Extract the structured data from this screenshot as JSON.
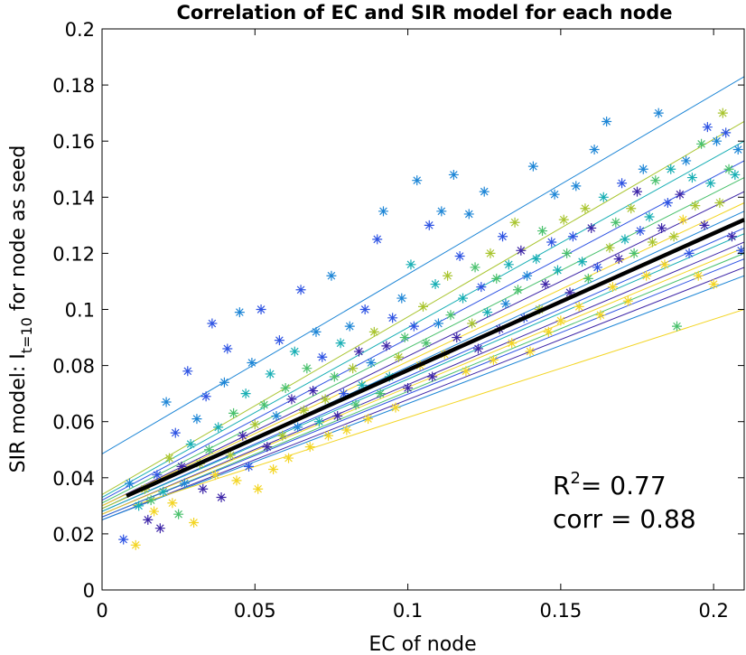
{
  "chart_data": {
    "type": "scatter",
    "title": "Correlation of EC and SIR model for each node",
    "xlabel": "EC of node",
    "ylabel_main": "SIR model: I",
    "ylabel_sub": "t=10",
    "ylabel_rest": " for node as seed",
    "xlim": [
      0,
      0.21
    ],
    "ylim": [
      0,
      0.2
    ],
    "xticks": [
      0,
      0.05,
      0.1,
      0.15,
      0.2
    ],
    "xtick_labels": [
      "0",
      "0.05",
      "0.1",
      "0.15",
      "0.2"
    ],
    "yticks": [
      0,
      0.02,
      0.04,
      0.06,
      0.08,
      0.1,
      0.12,
      0.14,
      0.16,
      0.18,
      0.2
    ],
    "ytick_labels": [
      "0",
      "0.02",
      "0.04",
      "0.06",
      "0.08",
      "0.1",
      "0.12",
      "0.14",
      "0.16",
      "0.18",
      "0.2"
    ],
    "marker": "asterisk",
    "colormap": [
      "#3e26a8",
      "#2f54e3",
      "#1e86d6",
      "#17aeb4",
      "#4ac16d",
      "#a9c530",
      "#f3d524",
      "#f9fb15"
    ],
    "overall_fit": {
      "x": [
        0.008,
        0.21
      ],
      "y": [
        0.0335,
        0.132
      ],
      "color": "#000000"
    },
    "series_fits": [
      {
        "x": [
          0,
          0.21
        ],
        "y": [
          0.0485,
          0.183
        ],
        "color": "#1e86d6"
      },
      {
        "x": [
          0,
          0.21
        ],
        "y": [
          0.034,
          0.167
        ],
        "color": "#a9c530"
      },
      {
        "x": [
          0,
          0.21
        ],
        "y": [
          0.033,
          0.16
        ],
        "color": "#17aeb4"
      },
      {
        "x": [
          0,
          0.21
        ],
        "y": [
          0.032,
          0.153
        ],
        "color": "#2f54e3"
      },
      {
        "x": [
          0,
          0.21
        ],
        "y": [
          0.031,
          0.147
        ],
        "color": "#4ac16d"
      },
      {
        "x": [
          0,
          0.21
        ],
        "y": [
          0.03,
          0.142
        ],
        "color": "#3e26a8"
      },
      {
        "x": [
          0,
          0.21
        ],
        "y": [
          0.03,
          0.138
        ],
        "color": "#f3d524"
      },
      {
        "x": [
          0,
          0.21
        ],
        "y": [
          0.029,
          0.135
        ],
        "color": "#1e86d6"
      },
      {
        "x": [
          0,
          0.21
        ],
        "y": [
          0.029,
          0.132
        ],
        "color": "#a9c530"
      },
      {
        "x": [
          0,
          0.21
        ],
        "y": [
          0.028,
          0.129
        ],
        "color": "#2f54e3"
      },
      {
        "x": [
          0,
          0.21
        ],
        "y": [
          0.028,
          0.127
        ],
        "color": "#17aeb4"
      },
      {
        "x": [
          0,
          0.21
        ],
        "y": [
          0.027,
          0.124
        ],
        "color": "#3e26a8"
      },
      {
        "x": [
          0,
          0.21
        ],
        "y": [
          0.027,
          0.122
        ],
        "color": "#f3d524"
      },
      {
        "x": [
          0,
          0.21
        ],
        "y": [
          0.026,
          0.12
        ],
        "color": "#4ac16d"
      },
      {
        "x": [
          0,
          0.21
        ],
        "y": [
          0.026,
          0.118
        ],
        "color": "#2f54e3"
      },
      {
        "x": [
          0,
          0.21
        ],
        "y": [
          0.025,
          0.115
        ],
        "color": "#3e26a8"
      },
      {
        "x": [
          0,
          0.21
        ],
        "y": [
          0.025,
          0.112
        ],
        "color": "#1e86d6"
      },
      {
        "x": [
          0.01,
          0.21
        ],
        "y": [
          0.03,
          0.1
        ],
        "color": "#f3d524"
      }
    ],
    "points": [
      [
        0.007,
        0.018,
        "#2f54e3"
      ],
      [
        0.009,
        0.038,
        "#1e86d6"
      ],
      [
        0.011,
        0.016,
        "#f3d524"
      ],
      [
        0.012,
        0.03,
        "#17aeb4"
      ],
      [
        0.014,
        0.036,
        "#a9c530"
      ],
      [
        0.015,
        0.025,
        "#3e26a8"
      ],
      [
        0.016,
        0.032,
        "#4ac16d"
      ],
      [
        0.017,
        0.028,
        "#f3d524"
      ],
      [
        0.018,
        0.041,
        "#2f54e3"
      ],
      [
        0.019,
        0.022,
        "#3e26a8"
      ],
      [
        0.02,
        0.035,
        "#17aeb4"
      ],
      [
        0.021,
        0.067,
        "#1e86d6"
      ],
      [
        0.022,
        0.047,
        "#a9c530"
      ],
      [
        0.023,
        0.031,
        "#f3d524"
      ],
      [
        0.024,
        0.056,
        "#2f54e3"
      ],
      [
        0.025,
        0.027,
        "#4ac16d"
      ],
      [
        0.026,
        0.044,
        "#3e26a8"
      ],
      [
        0.027,
        0.038,
        "#1e86d6"
      ],
      [
        0.028,
        0.078,
        "#2f54e3"
      ],
      [
        0.029,
        0.052,
        "#17aeb4"
      ],
      [
        0.03,
        0.024,
        "#f3d524"
      ],
      [
        0.031,
        0.061,
        "#1e86d6"
      ],
      [
        0.032,
        0.045,
        "#a9c530"
      ],
      [
        0.033,
        0.036,
        "#3e26a8"
      ],
      [
        0.034,
        0.069,
        "#2f54e3"
      ],
      [
        0.035,
        0.05,
        "#4ac16d"
      ],
      [
        0.036,
        0.095,
        "#2f54e3"
      ],
      [
        0.037,
        0.041,
        "#f3d524"
      ],
      [
        0.038,
        0.058,
        "#17aeb4"
      ],
      [
        0.039,
        0.033,
        "#3e26a8"
      ],
      [
        0.04,
        0.074,
        "#1e86d6"
      ],
      [
        0.041,
        0.086,
        "#2f54e3"
      ],
      [
        0.042,
        0.048,
        "#a9c530"
      ],
      [
        0.043,
        0.063,
        "#4ac16d"
      ],
      [
        0.044,
        0.039,
        "#f3d524"
      ],
      [
        0.045,
        0.099,
        "#1e86d6"
      ],
      [
        0.046,
        0.055,
        "#3e26a8"
      ],
      [
        0.047,
        0.07,
        "#17aeb4"
      ],
      [
        0.048,
        0.044,
        "#2f54e3"
      ],
      [
        0.049,
        0.081,
        "#1e86d6"
      ],
      [
        0.05,
        0.059,
        "#a9c530"
      ],
      [
        0.051,
        0.036,
        "#f3d524"
      ],
      [
        0.052,
        0.1,
        "#2f54e3"
      ],
      [
        0.053,
        0.066,
        "#4ac16d"
      ],
      [
        0.054,
        0.051,
        "#3e26a8"
      ],
      [
        0.055,
        0.077,
        "#17aeb4"
      ],
      [
        0.056,
        0.043,
        "#f3d524"
      ],
      [
        0.057,
        0.062,
        "#1e86d6"
      ],
      [
        0.058,
        0.089,
        "#2f54e3"
      ],
      [
        0.059,
        0.055,
        "#a9c530"
      ],
      [
        0.06,
        0.072,
        "#4ac16d"
      ],
      [
        0.061,
        0.047,
        "#f3d524"
      ],
      [
        0.062,
        0.068,
        "#3e26a8"
      ],
      [
        0.063,
        0.085,
        "#17aeb4"
      ],
      [
        0.064,
        0.058,
        "#1e86d6"
      ],
      [
        0.065,
        0.107,
        "#2f54e3"
      ],
      [
        0.066,
        0.064,
        "#a9c530"
      ],
      [
        0.067,
        0.079,
        "#4ac16d"
      ],
      [
        0.068,
        0.051,
        "#f3d524"
      ],
      [
        0.069,
        0.071,
        "#3e26a8"
      ],
      [
        0.07,
        0.092,
        "#1e86d6"
      ],
      [
        0.071,
        0.06,
        "#17aeb4"
      ],
      [
        0.072,
        0.083,
        "#2f54e3"
      ],
      [
        0.073,
        0.068,
        "#a9c530"
      ],
      [
        0.074,
        0.055,
        "#f3d524"
      ],
      [
        0.075,
        0.112,
        "#1e86d6"
      ],
      [
        0.076,
        0.076,
        "#4ac16d"
      ],
      [
        0.077,
        0.062,
        "#3e26a8"
      ],
      [
        0.078,
        0.088,
        "#17aeb4"
      ],
      [
        0.079,
        0.07,
        "#2f54e3"
      ],
      [
        0.08,
        0.057,
        "#f3d524"
      ],
      [
        0.081,
        0.094,
        "#1e86d6"
      ],
      [
        0.082,
        0.079,
        "#a9c530"
      ],
      [
        0.083,
        0.066,
        "#4ac16d"
      ],
      [
        0.084,
        0.085,
        "#3e26a8"
      ],
      [
        0.085,
        0.073,
        "#17aeb4"
      ],
      [
        0.086,
        0.1,
        "#2f54e3"
      ],
      [
        0.087,
        0.061,
        "#f3d524"
      ],
      [
        0.088,
        0.081,
        "#1e86d6"
      ],
      [
        0.089,
        0.092,
        "#a9c530"
      ],
      [
        0.09,
        0.125,
        "#2f54e3"
      ],
      [
        0.091,
        0.07,
        "#4ac16d"
      ],
      [
        0.092,
        0.135,
        "#1e86d6"
      ],
      [
        0.093,
        0.087,
        "#3e26a8"
      ],
      [
        0.094,
        0.076,
        "#17aeb4"
      ],
      [
        0.095,
        0.097,
        "#2f54e3"
      ],
      [
        0.096,
        0.065,
        "#f3d524"
      ],
      [
        0.097,
        0.083,
        "#a9c530"
      ],
      [
        0.098,
        0.104,
        "#1e86d6"
      ],
      [
        0.099,
        0.09,
        "#4ac16d"
      ],
      [
        0.1,
        0.072,
        "#3e26a8"
      ],
      [
        0.101,
        0.116,
        "#17aeb4"
      ],
      [
        0.102,
        0.094,
        "#2f54e3"
      ],
      [
        0.103,
        0.146,
        "#1e86d6"
      ],
      [
        0.104,
        0.08,
        "#f3d524"
      ],
      [
        0.105,
        0.101,
        "#a9c530"
      ],
      [
        0.106,
        0.088,
        "#4ac16d"
      ],
      [
        0.107,
        0.13,
        "#2f54e3"
      ],
      [
        0.108,
        0.076,
        "#3e26a8"
      ],
      [
        0.109,
        0.109,
        "#17aeb4"
      ],
      [
        0.11,
        0.095,
        "#1e86d6"
      ],
      [
        0.111,
        0.135,
        "#1e86d6"
      ],
      [
        0.112,
        0.084,
        "#f3d524"
      ],
      [
        0.113,
        0.112,
        "#a9c530"
      ],
      [
        0.114,
        0.098,
        "#4ac16d"
      ],
      [
        0.115,
        0.148,
        "#1e86d6"
      ],
      [
        0.116,
        0.09,
        "#3e26a8"
      ],
      [
        0.117,
        0.119,
        "#2f54e3"
      ],
      [
        0.118,
        0.104,
        "#17aeb4"
      ],
      [
        0.119,
        0.078,
        "#f3d524"
      ],
      [
        0.12,
        0.134,
        "#1e86d6"
      ],
      [
        0.121,
        0.095,
        "#a9c530"
      ],
      [
        0.122,
        0.115,
        "#4ac16d"
      ],
      [
        0.123,
        0.086,
        "#3e26a8"
      ],
      [
        0.124,
        0.108,
        "#2f54e3"
      ],
      [
        0.125,
        0.142,
        "#1e86d6"
      ],
      [
        0.126,
        0.099,
        "#17aeb4"
      ],
      [
        0.127,
        0.12,
        "#a9c530"
      ],
      [
        0.128,
        0.082,
        "#f3d524"
      ],
      [
        0.129,
        0.111,
        "#4ac16d"
      ],
      [
        0.13,
        0.093,
        "#3e26a8"
      ],
      [
        0.131,
        0.126,
        "#2f54e3"
      ],
      [
        0.132,
        0.102,
        "#1e86d6"
      ],
      [
        0.133,
        0.116,
        "#17aeb4"
      ],
      [
        0.134,
        0.088,
        "#f3d524"
      ],
      [
        0.135,
        0.131,
        "#a9c530"
      ],
      [
        0.136,
        0.107,
        "#4ac16d"
      ],
      [
        0.137,
        0.121,
        "#3e26a8"
      ],
      [
        0.138,
        0.097,
        "#2f54e3"
      ],
      [
        0.139,
        0.112,
        "#1e86d6"
      ],
      [
        0.14,
        0.085,
        "#f3d524"
      ],
      [
        0.141,
        0.151,
        "#1e86d6"
      ],
      [
        0.142,
        0.118,
        "#17aeb4"
      ],
      [
        0.143,
        0.1,
        "#a9c530"
      ],
      [
        0.144,
        0.128,
        "#4ac16d"
      ],
      [
        0.145,
        0.109,
        "#3e26a8"
      ],
      [
        0.146,
        0.092,
        "#f3d524"
      ],
      [
        0.147,
        0.124,
        "#2f54e3"
      ],
      [
        0.148,
        0.141,
        "#1e86d6"
      ],
      [
        0.149,
        0.114,
        "#17aeb4"
      ],
      [
        0.15,
        0.096,
        "#f3d524"
      ],
      [
        0.151,
        0.132,
        "#a9c530"
      ],
      [
        0.152,
        0.12,
        "#4ac16d"
      ],
      [
        0.153,
        0.106,
        "#3e26a8"
      ],
      [
        0.154,
        0.126,
        "#2f54e3"
      ],
      [
        0.155,
        0.144,
        "#1e86d6"
      ],
      [
        0.156,
        0.101,
        "#f3d524"
      ],
      [
        0.157,
        0.117,
        "#17aeb4"
      ],
      [
        0.158,
        0.136,
        "#a9c530"
      ],
      [
        0.159,
        0.111,
        "#4ac16d"
      ],
      [
        0.16,
        0.129,
        "#3e26a8"
      ],
      [
        0.161,
        0.157,
        "#1e86d6"
      ],
      [
        0.162,
        0.115,
        "#2f54e3"
      ],
      [
        0.163,
        0.098,
        "#f3d524"
      ],
      [
        0.164,
        0.14,
        "#17aeb4"
      ],
      [
        0.165,
        0.167,
        "#1e86d6"
      ],
      [
        0.166,
        0.122,
        "#a9c530"
      ],
      [
        0.167,
        0.108,
        "#f3d524"
      ],
      [
        0.168,
        0.131,
        "#4ac16d"
      ],
      [
        0.169,
        0.118,
        "#3e26a8"
      ],
      [
        0.17,
        0.145,
        "#2f54e3"
      ],
      [
        0.171,
        0.125,
        "#17aeb4"
      ],
      [
        0.172,
        0.103,
        "#f3d524"
      ],
      [
        0.173,
        0.136,
        "#a9c530"
      ],
      [
        0.174,
        0.12,
        "#4ac16d"
      ],
      [
        0.175,
        0.142,
        "#3e26a8"
      ],
      [
        0.176,
        0.128,
        "#2f54e3"
      ],
      [
        0.177,
        0.15,
        "#1e86d6"
      ],
      [
        0.178,
        0.112,
        "#f3d524"
      ],
      [
        0.179,
        0.133,
        "#17aeb4"
      ],
      [
        0.18,
        0.124,
        "#a9c530"
      ],
      [
        0.181,
        0.146,
        "#4ac16d"
      ],
      [
        0.182,
        0.17,
        "#1e86d6"
      ],
      [
        0.183,
        0.129,
        "#3e26a8"
      ],
      [
        0.184,
        0.116,
        "#f3d524"
      ],
      [
        0.185,
        0.138,
        "#2f54e3"
      ],
      [
        0.186,
        0.15,
        "#17aeb4"
      ],
      [
        0.187,
        0.126,
        "#a9c530"
      ],
      [
        0.188,
        0.094,
        "#4ac16d"
      ],
      [
        0.189,
        0.141,
        "#3e26a8"
      ],
      [
        0.19,
        0.132,
        "#f3d524"
      ],
      [
        0.191,
        0.153,
        "#1e86d6"
      ],
      [
        0.192,
        0.12,
        "#2f54e3"
      ],
      [
        0.193,
        0.147,
        "#17aeb4"
      ],
      [
        0.194,
        0.137,
        "#a9c530"
      ],
      [
        0.195,
        0.112,
        "#f3d524"
      ],
      [
        0.196,
        0.159,
        "#4ac16d"
      ],
      [
        0.197,
        0.13,
        "#3e26a8"
      ],
      [
        0.198,
        0.165,
        "#2f54e3"
      ],
      [
        0.199,
        0.145,
        "#17aeb4"
      ],
      [
        0.2,
        0.109,
        "#f3d524"
      ],
      [
        0.201,
        0.16,
        "#1e86d6"
      ],
      [
        0.202,
        0.138,
        "#a9c530"
      ],
      [
        0.203,
        0.17,
        "#a9c530"
      ],
      [
        0.204,
        0.163,
        "#2f54e3"
      ],
      [
        0.205,
        0.15,
        "#4ac16d"
      ],
      [
        0.206,
        0.126,
        "#3e26a8"
      ],
      [
        0.207,
        0.148,
        "#17aeb4"
      ],
      [
        0.208,
        0.157,
        "#1e86d6"
      ],
      [
        0.209,
        0.121,
        "#2f54e3"
      ]
    ],
    "stats": {
      "r2_label": "R",
      "r2_sup": "2",
      "r2_value": "= 0.77",
      "corr_text": "corr = 0.88"
    }
  }
}
